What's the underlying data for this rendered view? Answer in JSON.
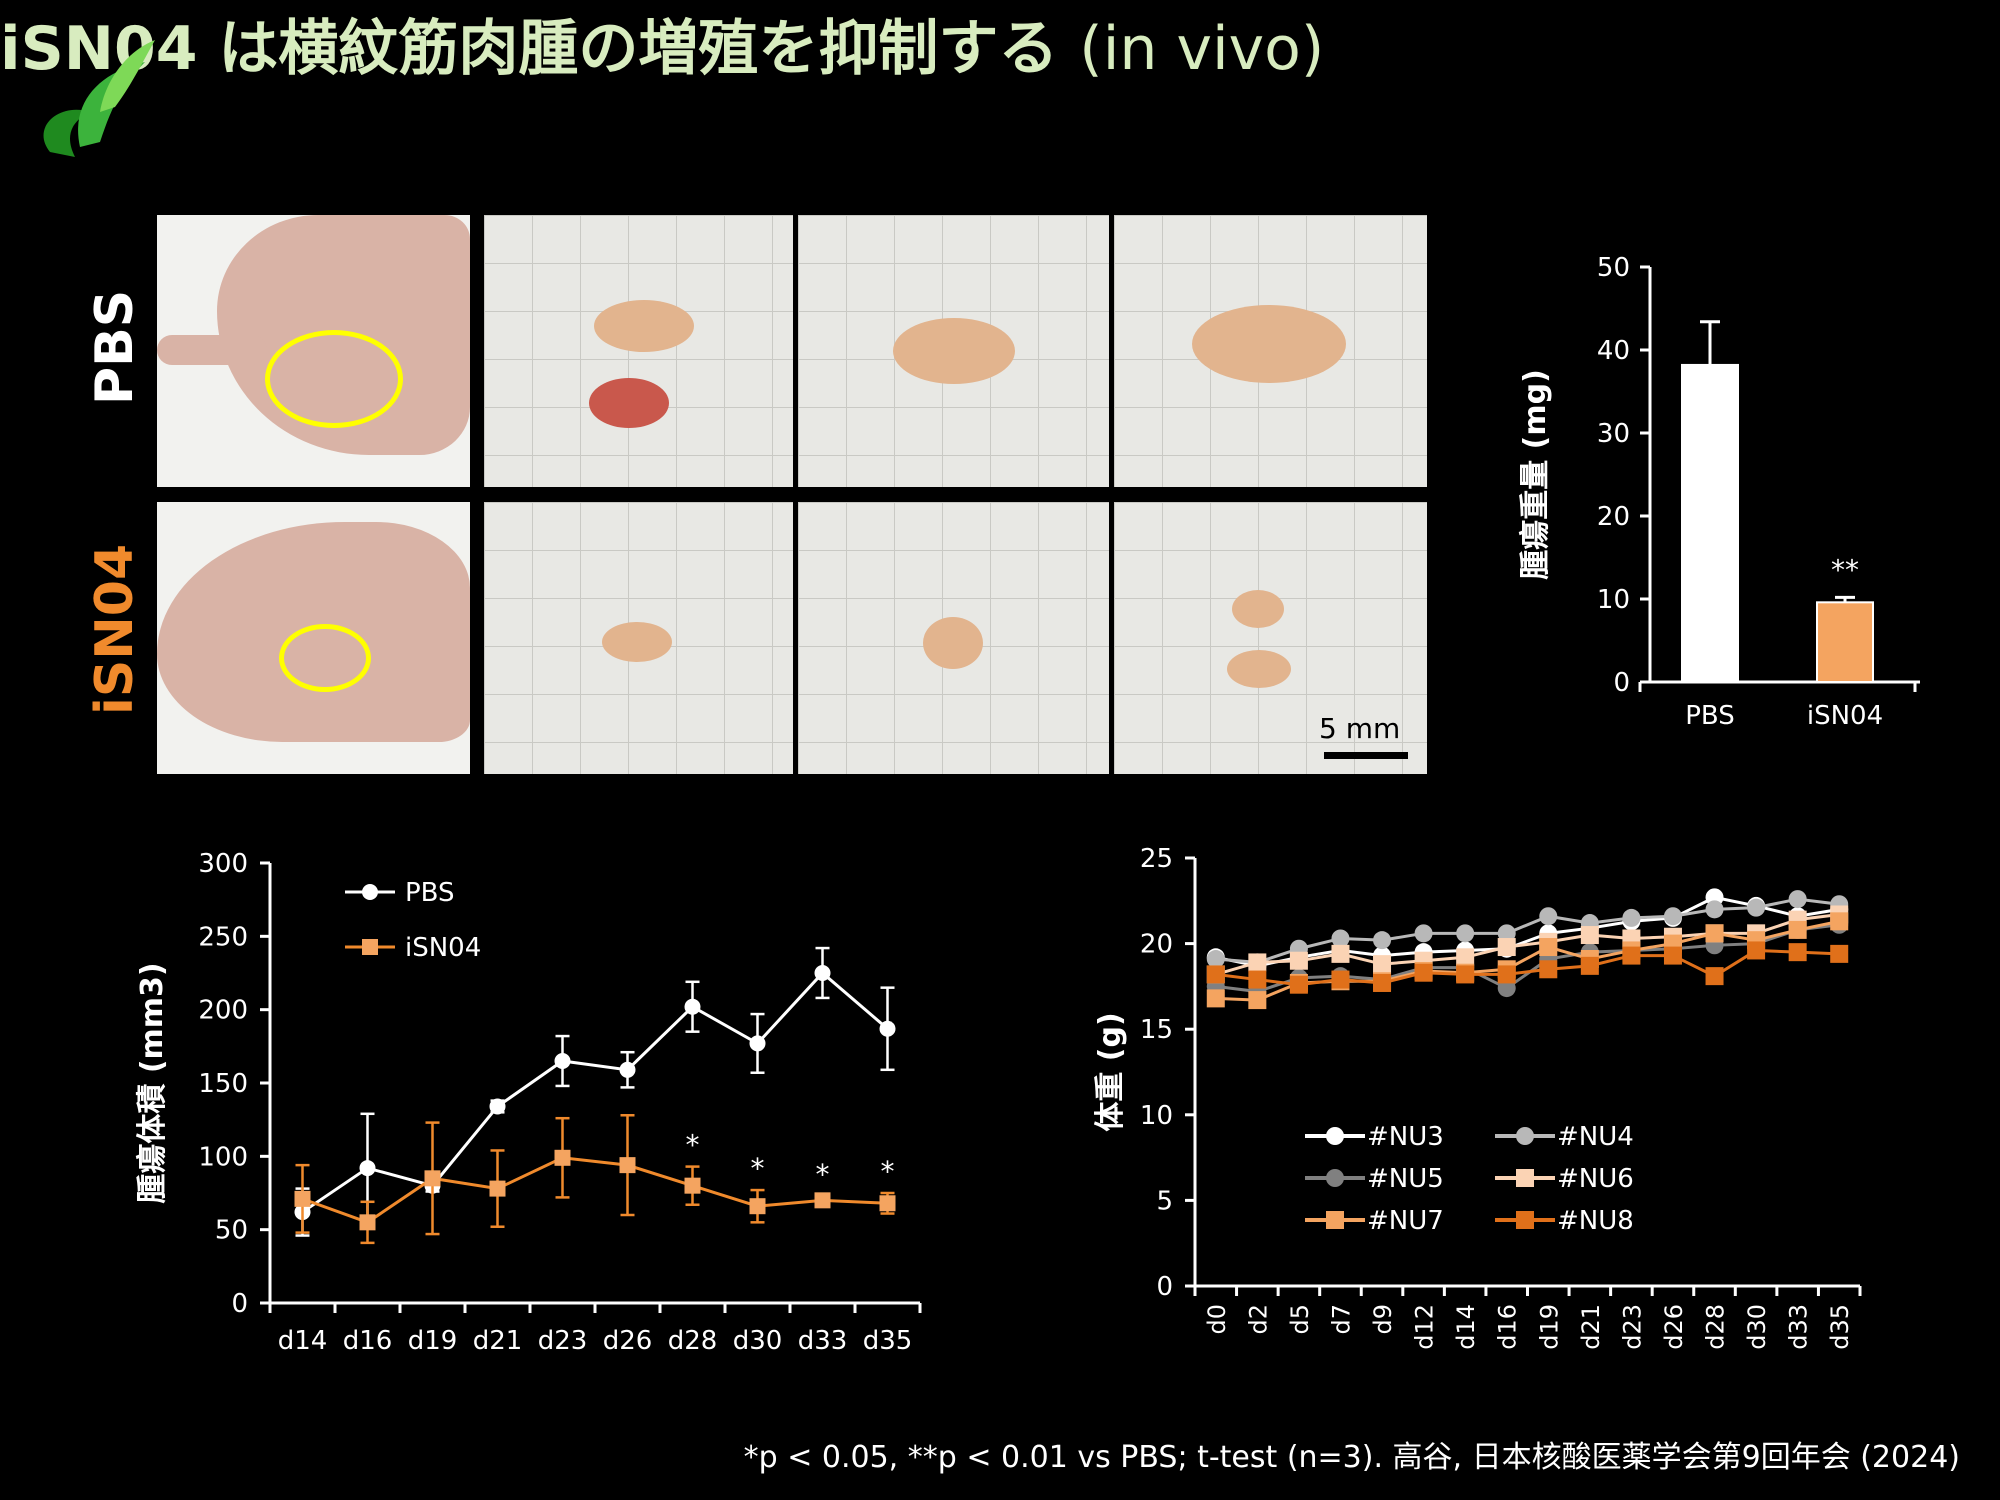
{
  "slide": {
    "title_main": "iSN04 は横紋筋肉腫の増殖を抑制する",
    "title_sub": "(in vivo)",
    "row_labels": [
      "PBS",
      "iSN04"
    ],
    "scale_bar": "5 mm",
    "footnote": "*p < 0.05, **p < 0.01 vs PBS; t-test (n=3). 高谷, 日本核酸医薬学会第9回年会 (2024)",
    "colors": {
      "title": "#d8ecbf",
      "pbs": "#ffffff",
      "isn04": "#f4a460",
      "highlight": "#ffff00",
      "logo": "#2e9e2e"
    }
  },
  "chart_data": [
    {
      "type": "bar",
      "categories": [
        "PBS",
        "iSN04"
      ],
      "values": [
        38.2,
        9.6
      ],
      "errors": [
        5.2,
        0.6
      ],
      "ylabel": "腫瘍重量 (mg)",
      "ylim": [
        0,
        50
      ],
      "yticks": [
        0,
        10,
        20,
        30,
        40,
        50
      ],
      "annotations": [
        {
          "category": "iSN04",
          "text": "**"
        }
      ]
    },
    {
      "type": "line",
      "x": [
        "d14",
        "d16",
        "d19",
        "d21",
        "d23",
        "d26",
        "d28",
        "d30",
        "d33",
        "d35"
      ],
      "series": [
        {
          "name": "PBS",
          "values": [
            62,
            92,
            80,
            134,
            165,
            159,
            202,
            177,
            225,
            187
          ],
          "errors": [
            16,
            37,
            4,
            4,
            17,
            12,
            17,
            20,
            17,
            28
          ]
        },
        {
          "name": "iSN04",
          "values": [
            71,
            55,
            85,
            78,
            99,
            94,
            80,
            66,
            70,
            68
          ],
          "errors": [
            23,
            14,
            38,
            26,
            27,
            34,
            13,
            11,
            3,
            7
          ]
        }
      ],
      "ylabel": "腫瘍体積 (mm3)",
      "ylim": [
        0,
        300
      ],
      "yticks": [
        0,
        50,
        100,
        150,
        200,
        250,
        300
      ],
      "annotations": [
        {
          "x": "d28",
          "text": "*"
        },
        {
          "x": "d30",
          "text": "*"
        },
        {
          "x": "d33",
          "text": "*"
        },
        {
          "x": "d35",
          "text": "*"
        }
      ],
      "legend": "top-left"
    },
    {
      "type": "line",
      "x": [
        "d0",
        "d2",
        "d5",
        "d7",
        "d9",
        "d12",
        "d14",
        "d16",
        "d19",
        "d21",
        "d23",
        "d26",
        "d28",
        "d30",
        "d33",
        "d35"
      ],
      "series": [
        {
          "name": "#NU3",
          "values": [
            19.2,
            18.7,
            19.2,
            19.6,
            19.3,
            19.5,
            19.6,
            19.7,
            20.6,
            20.9,
            21.3,
            21.5,
            22.7,
            22.2,
            21.6,
            22.0
          ]
        },
        {
          "name": "#NU4",
          "values": [
            19.1,
            18.9,
            19.7,
            20.3,
            20.2,
            20.6,
            20.6,
            20.6,
            21.6,
            21.2,
            21.5,
            21.6,
            22.0,
            22.1,
            22.6,
            22.3
          ]
        },
        {
          "name": "#NU5",
          "values": [
            17.5,
            17.2,
            18.0,
            18.1,
            17.9,
            18.6,
            18.6,
            17.4,
            19.1,
            19.5,
            19.6,
            19.7,
            19.9,
            20.0,
            20.8,
            21.1
          ]
        },
        {
          "name": "#NU6",
          "values": [
            18.2,
            18.9,
            19.0,
            19.4,
            18.8,
            19.0,
            19.2,
            19.8,
            20.1,
            20.5,
            20.3,
            20.4,
            20.6,
            20.6,
            21.4,
            21.7
          ]
        },
        {
          "name": "#NU7",
          "values": [
            16.8,
            16.7,
            17.7,
            17.8,
            17.8,
            18.4,
            18.3,
            18.5,
            19.8,
            19.1,
            19.6,
            20.0,
            20.6,
            20.2,
            20.8,
            21.3
          ]
        },
        {
          "name": "#NU8",
          "values": [
            18.2,
            17.9,
            17.6,
            17.9,
            17.7,
            18.3,
            18.2,
            18.2,
            18.5,
            18.7,
            19.3,
            19.3,
            18.1,
            19.6,
            19.5,
            19.4
          ]
        }
      ],
      "ylabel": "体重 (g)",
      "ylim": [
        0,
        25
      ],
      "yticks": [
        0,
        5,
        10,
        15,
        20,
        25
      ],
      "legend": "bottom-center"
    }
  ]
}
